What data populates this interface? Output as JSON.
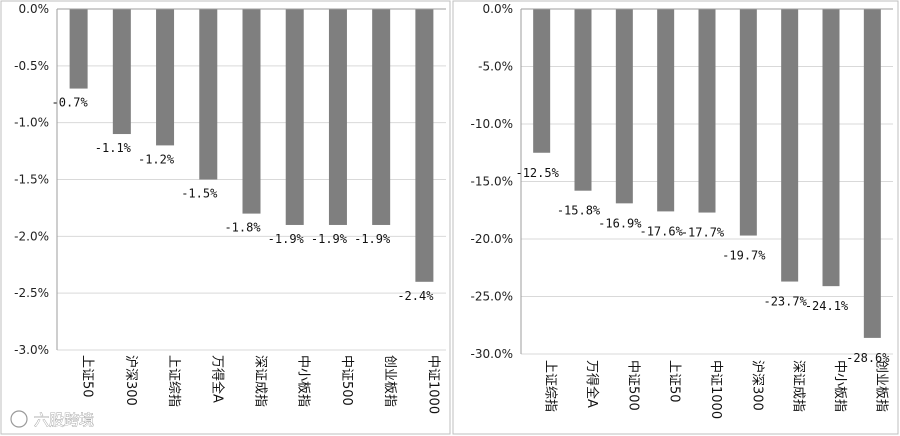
{
  "chart_data": [
    {
      "type": "bar",
      "categories": [
        "上证50",
        "沪深300",
        "上证综指",
        "万得全A",
        "深证成指",
        "中小板指",
        "中证500",
        "创业板指",
        "中证1000"
      ],
      "values": [
        -0.7,
        -1.1,
        -1.2,
        -1.5,
        -1.8,
        -1.9,
        -1.9,
        -1.9,
        -2.4
      ],
      "data_labels": [
        "-0.7%",
        "-1.1%",
        "-1.2%",
        "-1.5%",
        "-1.8%",
        "-1.9%",
        "-1.9%",
        "-1.9%",
        "-2.4%"
      ],
      "yticks": [
        0,
        -0.5,
        -1.0,
        -1.5,
        -2.0,
        -2.5,
        -3.0
      ],
      "ytick_labels": [
        "0.0%",
        "-0.5%",
        "-1.0%",
        "-1.5%",
        "-2.0%",
        "-2.5%",
        "-3.0%"
      ],
      "ylim": [
        -3.0,
        0
      ],
      "grid": true
    },
    {
      "type": "bar",
      "categories": [
        "上证综指",
        "万得全A",
        "中证500",
        "上证50",
        "中证1000",
        "沪深300",
        "深证成指",
        "中小板指",
        "创业板指"
      ],
      "values": [
        -12.5,
        -15.8,
        -16.9,
        -17.6,
        -17.7,
        -19.7,
        -23.7,
        -24.1,
        -28.6
      ],
      "data_labels": [
        "-12.5%",
        "-15.8%",
        "-16.9%",
        "-17.6%",
        "-17.7%",
        "-19.7%",
        "-23.7%",
        "-24.1%",
        "-28.6%"
      ],
      "yticks": [
        0,
        -5,
        -10,
        -15,
        -20,
        -25,
        -30
      ],
      "ytick_labels": [
        "0.0%",
        "-5.0%",
        "-10.0%",
        "-15.0%",
        "-20.0%",
        "-25.0%",
        "-30.0%"
      ],
      "ylim": [
        -30,
        0
      ],
      "grid": true
    }
  ],
  "watermark": {
    "text": "六股跨境"
  }
}
